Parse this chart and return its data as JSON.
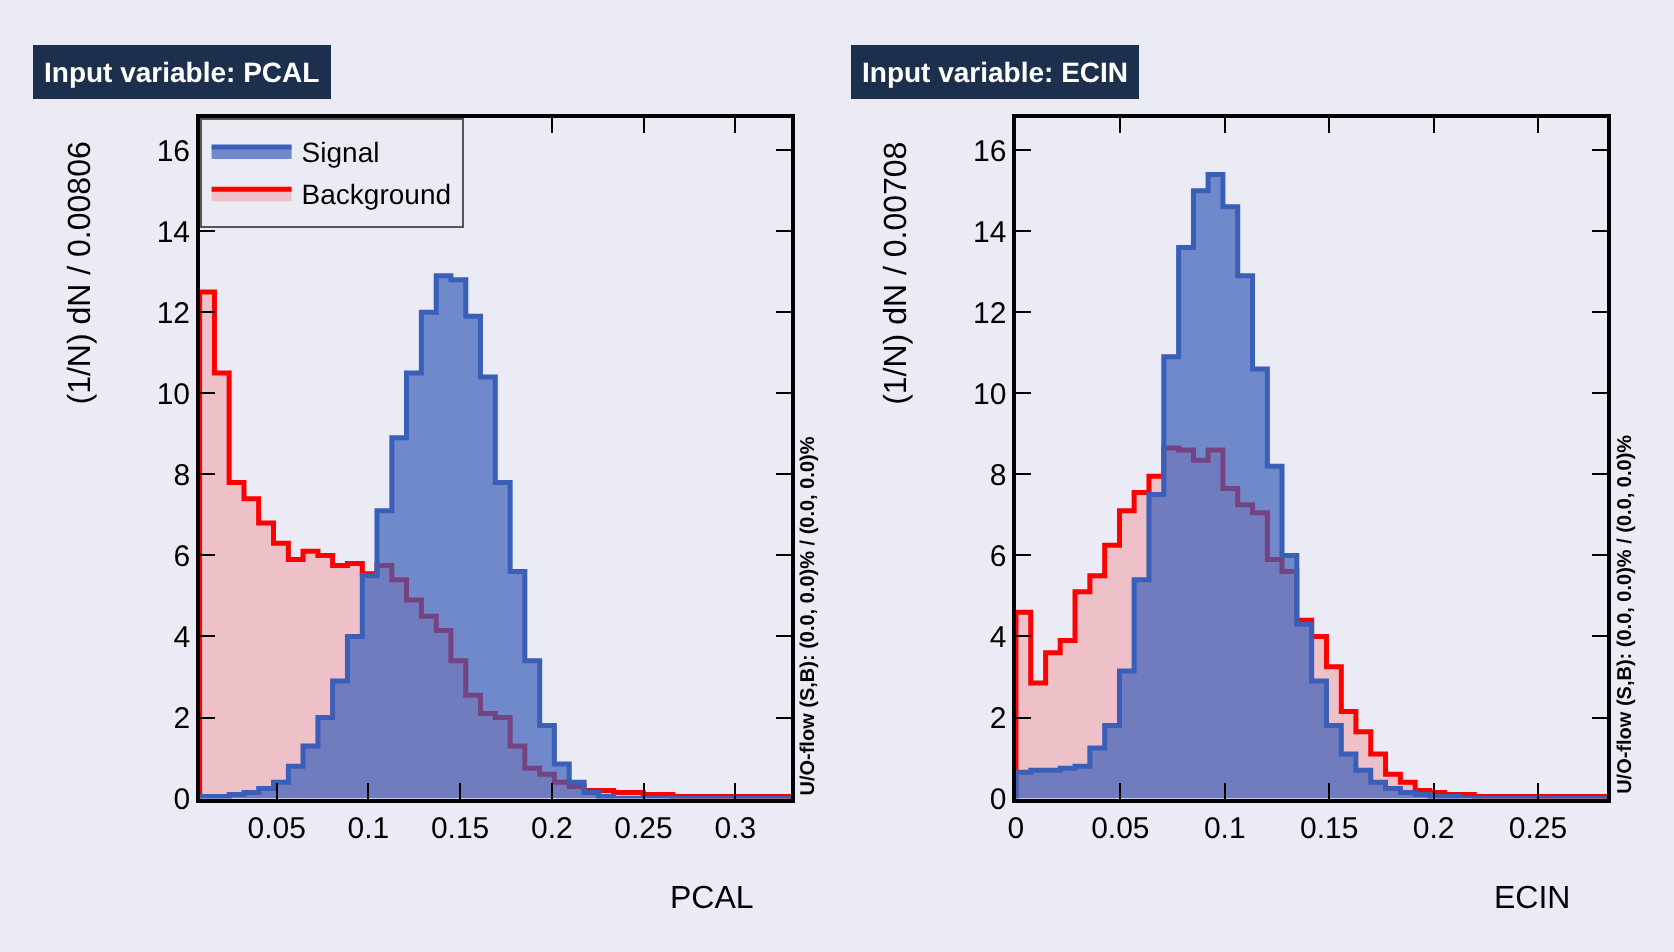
{
  "chart_data": [
    {
      "type": "histogram",
      "title": "Input variable: PCAL",
      "xlabel": "PCAL",
      "ylabel": "(1/N) dN / 0.00806",
      "annotations": [
        "U/O-flow (S,B): (0.0, 0.0)% / (0.0, 0.0)%"
      ],
      "bins": [
        0.008,
        0.0161,
        0.0241,
        0.0322,
        0.0402,
        0.0483,
        0.0564,
        0.0644,
        0.0725,
        0.0805,
        0.0886,
        0.0967,
        0.1047,
        0.1128,
        0.1208,
        0.1289,
        0.137,
        0.145,
        0.1531,
        0.1611,
        0.1692,
        0.1773,
        0.1853,
        0.1934,
        0.2014,
        0.2095,
        0.2176,
        0.2256,
        0.2337,
        0.2417,
        0.2498,
        0.2579,
        0.2659,
        0.274,
        0.282,
        0.2901,
        0.2982,
        0.3062,
        0.3143,
        0.3223,
        0.3304
      ],
      "series": [
        {
          "name": "Signal",
          "color": "#3a5fb8",
          "values": [
            0.05,
            0.05,
            0.1,
            0.15,
            0.25,
            0.4,
            0.8,
            1.3,
            2.0,
            2.9,
            4.0,
            5.5,
            7.1,
            8.9,
            10.5,
            12.0,
            12.9,
            12.8,
            11.9,
            10.4,
            7.8,
            5.6,
            3.4,
            1.8,
            0.85,
            0.4,
            0.15,
            0.05,
            0,
            0,
            0,
            0,
            0,
            0,
            0,
            0,
            0,
            0,
            0,
            0
          ]
        },
        {
          "name": "Background",
          "color": "#ff0000",
          "values": [
            12.5,
            10.5,
            7.8,
            7.4,
            6.8,
            6.3,
            5.9,
            6.1,
            6.0,
            5.75,
            5.8,
            5.55,
            5.75,
            5.4,
            4.9,
            4.5,
            4.15,
            3.4,
            2.55,
            2.1,
            2.0,
            1.3,
            0.75,
            0.6,
            0.4,
            0.3,
            0.2,
            0.2,
            0.15,
            0.15,
            0.1,
            0.1,
            0.05,
            0.05,
            0.05,
            0.05,
            0.05,
            0.05,
            0.05,
            0.05
          ]
        }
      ],
      "xlim": [
        0.008,
        0.3304
      ],
      "xticks": [
        0.05,
        0.1,
        0.15,
        0.2,
        0.25,
        0.3
      ],
      "ylim": [
        0,
        16.8
      ],
      "yticks": [
        0,
        2,
        4,
        6,
        8,
        10,
        12,
        14,
        16
      ],
      "grid": false,
      "legend": "top left"
    },
    {
      "type": "histogram",
      "title": "Input variable: ECIN",
      "xlabel": "ECIN",
      "ylabel": "(1/N) dN / 0.00708",
      "annotations": [
        "U/O-flow (S,B): (0.0, 0.0)% / (0.0, 0.0)%"
      ],
      "bins": [
        0,
        0.0071,
        0.0142,
        0.0212,
        0.0283,
        0.0354,
        0.0425,
        0.0496,
        0.0566,
        0.0637,
        0.0708,
        0.0779,
        0.085,
        0.092,
        0.0991,
        0.1062,
        0.1133,
        0.1204,
        0.1274,
        0.1345,
        0.1416,
        0.1487,
        0.1558,
        0.1628,
        0.1699,
        0.177,
        0.1841,
        0.1912,
        0.1982,
        0.2053,
        0.2124,
        0.2195,
        0.2266,
        0.2336,
        0.2407,
        0.2478,
        0.2549,
        0.262,
        0.269,
        0.2761,
        0.2832
      ],
      "series": [
        {
          "color": "#3a5fb8",
          "values": [
            0.65,
            0.7,
            0.7,
            0.75,
            0.8,
            1.25,
            1.8,
            3.15,
            5.4,
            7.5,
            10.9,
            13.6,
            15.0,
            15.4,
            14.6,
            12.9,
            10.6,
            8.2,
            6.0,
            4.3,
            2.9,
            1.8,
            1.1,
            0.7,
            0.4,
            0.25,
            0.15,
            0.1,
            0.05,
            0.05,
            0,
            0,
            0,
            0,
            0,
            0,
            0,
            0,
            0,
            0
          ]
        },
        {
          "color": "#ff0000",
          "values": [
            4.6,
            2.85,
            3.6,
            3.9,
            5.1,
            5.5,
            6.25,
            7.1,
            7.55,
            7.95,
            8.65,
            8.6,
            8.35,
            8.6,
            7.65,
            7.25,
            7.05,
            5.9,
            5.6,
            4.4,
            4.0,
            3.25,
            2.15,
            1.65,
            1.1,
            0.6,
            0.4,
            0.2,
            0.15,
            0.1,
            0.1,
            0.05,
            0.05,
            0.05,
            0.05,
            0.05,
            0.05,
            0.05,
            0.05,
            0.05
          ]
        }
      ],
      "xlim": [
        0,
        0.2832
      ],
      "xticks": [
        0,
        0.05,
        0.1,
        0.15,
        0.2,
        0.25
      ],
      "ylim": [
        0,
        16.8
      ],
      "yticks": [
        0,
        2,
        4,
        6,
        8,
        10,
        12,
        14,
        16
      ],
      "grid": false,
      "legend": false
    }
  ]
}
